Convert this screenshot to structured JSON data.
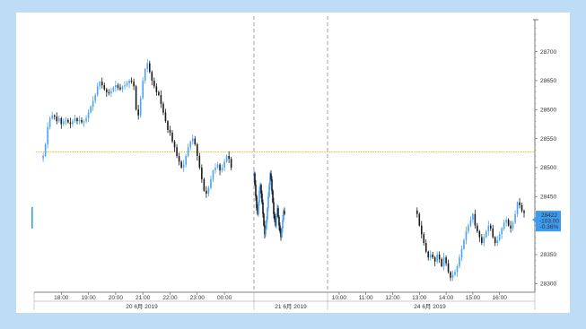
{
  "chart_data": {
    "type": "candlestick",
    "title": "",
    "xlabel": "",
    "ylabel": "",
    "ylim": [
      28285,
      28755
    ],
    "y_ticks": [
      28300,
      28350,
      28400,
      28450,
      28500,
      28550,
      28600,
      28650,
      28700
    ],
    "x_time_ticks": [
      "18:00",
      "19:00",
      "20:00",
      "21:00",
      "22:00",
      "23:00",
      "00:00",
      "10:00",
      "11:00",
      "12:00",
      "13:00",
      "14:00",
      "15:00",
      "16:00"
    ],
    "x_date_labels": [
      "20 6月 2019",
      "21 6月 2019",
      "24 6月 2019"
    ],
    "reference_level": 28527,
    "last_price_tag": {
      "price": "28422",
      "change": "-103.00",
      "pct": "-0.36%"
    },
    "grid": false,
    "legend": "none",
    "series": [
      {
        "segment": "20 6月 2019",
        "start": "17:20",
        "step_minutes": 5,
        "values": [
          28520,
          28540,
          28570,
          28585,
          28590,
          28588,
          28580,
          28585,
          28575,
          28580,
          28582,
          28578,
          28575,
          28580,
          28585,
          28580,
          28582,
          28578,
          28580,
          28585,
          28595,
          28605,
          28615,
          28625,
          28640,
          28648,
          28642,
          28635,
          28630,
          28628,
          28632,
          28638,
          28642,
          28638,
          28635,
          28640,
          28642,
          28645,
          28650,
          28648,
          28640,
          28600,
          28590,
          28620,
          28650,
          28670,
          28680,
          28665,
          28650,
          28640,
          28630,
          28625,
          28610,
          28595,
          28580,
          28565,
          28560,
          28545,
          28535,
          28520,
          28510,
          28500,
          28505,
          28520,
          28535,
          28545,
          28550,
          28540,
          28520,
          28500,
          28480,
          28460,
          28455,
          28465,
          28480,
          28495,
          28500,
          28505,
          28495,
          28500,
          28510,
          28520,
          28515,
          28500
        ]
      },
      {
        "segment": "21 6月 2019",
        "start": "00:00",
        "step_minutes": 5,
        "values": [
          28490,
          28470,
          28450,
          28430,
          28420,
          28440,
          28460,
          28470,
          28455,
          28440,
          28420,
          28400,
          28385,
          28395,
          28410,
          28430,
          28450,
          28470,
          28490,
          28480,
          28460,
          28440,
          28420,
          28410,
          28400,
          28420,
          28430,
          28415,
          28400,
          28390,
          28380,
          28395,
          28410,
          28425,
          28420
        ]
      },
      {
        "segment": "24 6月 2019",
        "start": "12:55",
        "step_minutes": 5,
        "values": [
          28420,
          28400,
          28385,
          28370,
          28355,
          28345,
          28350,
          28345,
          28338,
          28350,
          28342,
          28330,
          28345,
          28335,
          28320,
          28310,
          28315,
          28320,
          28330,
          28345,
          28360,
          28375,
          28390,
          28400,
          28410,
          28420,
          28400,
          28390,
          28380,
          28370,
          28380,
          28390,
          28400,
          28395,
          28380,
          28370,
          28375,
          28385,
          28395,
          28405,
          28410,
          28400,
          28395,
          28405,
          28420,
          28440,
          28435,
          28425,
          28422
        ]
      }
    ]
  }
}
